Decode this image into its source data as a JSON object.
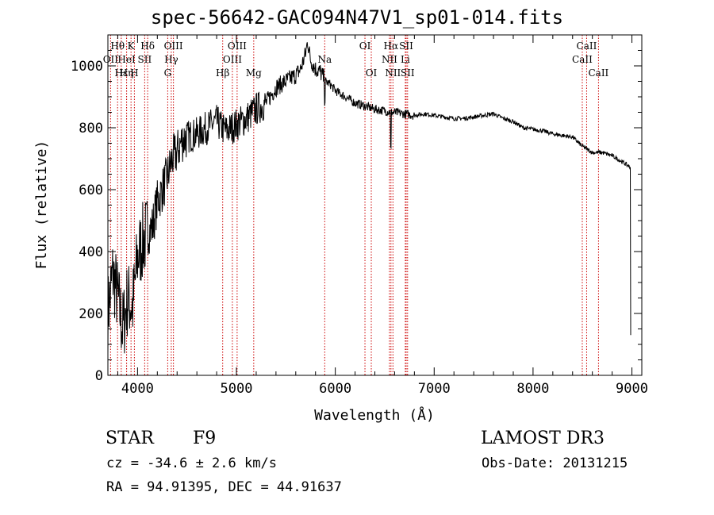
{
  "chart_data": {
    "type": "line",
    "title": "spec-56642-GAC094N47V1_sp01-014.fits",
    "xlabel": "Wavelength (Å)",
    "ylabel": "Flux (relative)",
    "xlim": [
      3700,
      9100
    ],
    "ylim": [
      0,
      1100
    ],
    "x_ticks": [
      4000,
      5000,
      6000,
      7000,
      8000,
      9000
    ],
    "x_tick_labels": [
      "4000",
      "5000",
      "6000",
      "7000",
      "8000",
      "9000"
    ],
    "y_ticks": [
      0,
      200,
      400,
      600,
      800,
      1000
    ],
    "y_tick_labels": [
      "0",
      "200",
      "400",
      "600",
      "800",
      "1000"
    ],
    "series": [
      {
        "name": "flux",
        "x": [
          3700,
          3750,
          3800,
          3850,
          3900,
          3950,
          4000,
          4050,
          4100,
          4150,
          4200,
          4250,
          4300,
          4350,
          4400,
          4450,
          4500,
          4600,
          4700,
          4800,
          4850,
          4900,
          5000,
          5100,
          5200,
          5300,
          5400,
          5500,
          5600,
          5650,
          5700,
          5720,
          5750,
          5800,
          5850,
          5900,
          5950,
          6000,
          6100,
          6200,
          6300,
          6400,
          6500,
          6560,
          6600,
          6700,
          6800,
          6900,
          7000,
          7100,
          7200,
          7300,
          7400,
          7500,
          7600,
          7700,
          7800,
          7900,
          8000,
          8100,
          8200,
          8300,
          8400,
          8500,
          8600,
          8700,
          8800,
          8900,
          8950,
          8990
        ],
        "y": [
          200,
          330,
          250,
          150,
          250,
          220,
          380,
          430,
          460,
          480,
          560,
          600,
          640,
          700,
          720,
          760,
          770,
          780,
          800,
          820,
          800,
          790,
          810,
          830,
          860,
          880,
          930,
          950,
          970,
          990,
          1040,
          1080,
          1020,
          990,
          980,
          950,
          940,
          920,
          900,
          880,
          870,
          860,
          855,
          850,
          850,
          845,
          840,
          845,
          840,
          835,
          830,
          830,
          835,
          840,
          845,
          830,
          820,
          800,
          795,
          790,
          780,
          775,
          770,
          740,
          720,
          720,
          710,
          690,
          680,
          670
        ]
      }
    ],
    "spectral_lines": [
      {
        "label": "Hθ",
        "wavelength": 3798,
        "row": 1
      },
      {
        "label": "OII",
        "wavelength": 3727,
        "row": 2
      },
      {
        "label": "Hε",
        "wavelength": 3835,
        "row": 3
      },
      {
        "label": "K",
        "wavelength": 3934,
        "row": 1
      },
      {
        "label": "HeI",
        "wavelength": 3889,
        "row": 2
      },
      {
        "label": "Hη",
        "wavelength": 3889,
        "row": 3
      },
      {
        "label": "SII",
        "wavelength": 4072,
        "row": 2
      },
      {
        "label": "H",
        "wavelength": 3968,
        "row": 3
      },
      {
        "label": "Hδ",
        "wavelength": 4102,
        "row": 1
      },
      {
        "label": "OIII",
        "wavelength": 4363,
        "row": 1
      },
      {
        "label": "Hγ",
        "wavelength": 4341,
        "row": 2
      },
      {
        "label": "G",
        "wavelength": 4305,
        "row": 3
      },
      {
        "label": "Hβ",
        "wavelength": 4861,
        "row": 3
      },
      {
        "label": "OIII",
        "wavelength": 5007,
        "row": 1
      },
      {
        "label": "OIII",
        "wavelength": 4959,
        "row": 2
      },
      {
        "label": "Mg",
        "wavelength": 5175,
        "row": 3
      },
      {
        "label": "Na",
        "wavelength": 5893,
        "row": 2
      },
      {
        "label": "OI",
        "wavelength": 6300,
        "row": 1
      },
      {
        "label": "OI",
        "wavelength": 6364,
        "row": 3
      },
      {
        "label": "Hα",
        "wavelength": 6563,
        "row": 1
      },
      {
        "label": "NII",
        "wavelength": 6548,
        "row": 2
      },
      {
        "label": "NII",
        "wavelength": 6583,
        "row": 3
      },
      {
        "label": "SII",
        "wavelength": 6717,
        "row": 1
      },
      {
        "label": "Li",
        "wavelength": 6708,
        "row": 2
      },
      {
        "label": "SII",
        "wavelength": 6731,
        "row": 3
      },
      {
        "label": "CaII",
        "wavelength": 8542,
        "row": 1
      },
      {
        "label": "CaII",
        "wavelength": 8498,
        "row": 2
      },
      {
        "label": "CaII",
        "wavelength": 8662,
        "row": 3
      }
    ]
  },
  "info": {
    "object_class": "STAR",
    "subclass": "F9",
    "survey": "LAMOST DR3",
    "cz": "cz = -34.6 ± 2.6 km/s",
    "obs_date": "Obs-Date: 20131215",
    "coords": "RA =  94.91395, DEC =  44.91637"
  },
  "colors": {
    "line_marker": "#cc0000",
    "spectrum": "#000000"
  }
}
